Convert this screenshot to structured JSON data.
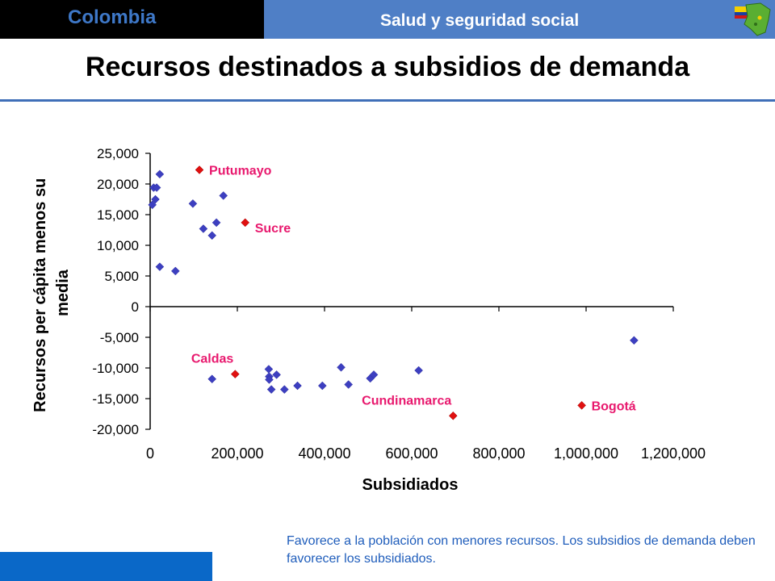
{
  "header": {
    "country": "Colombia",
    "section": "Salud y seguridad social",
    "logo_icon": "colombia-flag-map-icon",
    "colors": {
      "left_bar": "#000000",
      "right_bar": "#4f7fc6",
      "country_text": "#3e78c8"
    }
  },
  "page_title": "Recursos destinados a subsidios de demanda",
  "footer": {
    "note": "Favorece a la población con menores recursos. Los subsidios de demanda deben favorecer los subsidiados.",
    "bar_color": "#0a68c8"
  },
  "chart_data": {
    "type": "scatter",
    "title": "",
    "xlabel": "Subsidiados",
    "ylabel_lines": [
      "Recursos per cápita menos su",
      "media"
    ],
    "xlim": [
      0,
      1200000
    ],
    "ylim": [
      -20000,
      25000
    ],
    "xticks": [
      {
        "value": 0,
        "label": "0"
      },
      {
        "value": 200000,
        "label": "200,000"
      },
      {
        "value": 400000,
        "label": "400,000"
      },
      {
        "value": 600000,
        "label": "600,000"
      },
      {
        "value": 800000,
        "label": "800,000"
      },
      {
        "value": 1000000,
        "label": "1,000,000"
      },
      {
        "value": 1200000,
        "label": "1,200,000"
      }
    ],
    "yticks": [
      {
        "value": 25000,
        "label": "25,000"
      },
      {
        "value": 20000,
        "label": "20,000"
      },
      {
        "value": 15000,
        "label": "15,000"
      },
      {
        "value": 10000,
        "label": "10,000"
      },
      {
        "value": 5000,
        "label": "5,000"
      },
      {
        "value": 0,
        "label": "0"
      },
      {
        "value": -5000,
        "label": "-5,000"
      },
      {
        "value": -10000,
        "label": "-10,000"
      },
      {
        "value": -15000,
        "label": "-15,000"
      },
      {
        "value": -20000,
        "label": "-20,000"
      }
    ],
    "grid": false,
    "colors": {
      "points": "#3d3fc0",
      "highlight": "#e01010",
      "highlight_label": "#e8196e"
    },
    "points": [
      {
        "x": 5000,
        "y": 16600
      },
      {
        "x": 8000,
        "y": 19400
      },
      {
        "x": 12000,
        "y": 17500
      },
      {
        "x": 15000,
        "y": 19400
      },
      {
        "x": 22000,
        "y": 21600
      },
      {
        "x": 22000,
        "y": 6500
      },
      {
        "x": 58000,
        "y": 5800
      },
      {
        "x": 98000,
        "y": 16800
      },
      {
        "x": 122000,
        "y": 12700
      },
      {
        "x": 142000,
        "y": 11600
      },
      {
        "x": 152000,
        "y": 13700
      },
      {
        "x": 168000,
        "y": 18100
      },
      {
        "x": 142000,
        "y": -11800
      },
      {
        "x": 272000,
        "y": -10200
      },
      {
        "x": 273000,
        "y": -11400
      },
      {
        "x": 273000,
        "y": -11900
      },
      {
        "x": 278000,
        "y": -13500
      },
      {
        "x": 290000,
        "y": -11100
      },
      {
        "x": 308000,
        "y": -13500
      },
      {
        "x": 338000,
        "y": -12900
      },
      {
        "x": 395000,
        "y": -12900
      },
      {
        "x": 438000,
        "y": -9900
      },
      {
        "x": 455000,
        "y": -12700
      },
      {
        "x": 505000,
        "y": -11700
      },
      {
        "x": 513000,
        "y": -11100
      },
      {
        "x": 616000,
        "y": -10400
      },
      {
        "x": 1110000,
        "y": -5500
      }
    ],
    "highlighted": [
      {
        "label": "Putumayo",
        "x": 113000,
        "y": 22300,
        "label_pos": "right"
      },
      {
        "label": "Sucre",
        "x": 218000,
        "y": 13700,
        "label_pos": "below-right"
      },
      {
        "label": "Caldas",
        "x": 195000,
        "y": -11000,
        "label_pos": "above-left"
      },
      {
        "label": "Cundinamarca",
        "x": 695000,
        "y": -17800,
        "label_pos": "above-left"
      },
      {
        "label": "Bogotá",
        "x": 990000,
        "y": -16100,
        "label_pos": "right"
      }
    ]
  }
}
